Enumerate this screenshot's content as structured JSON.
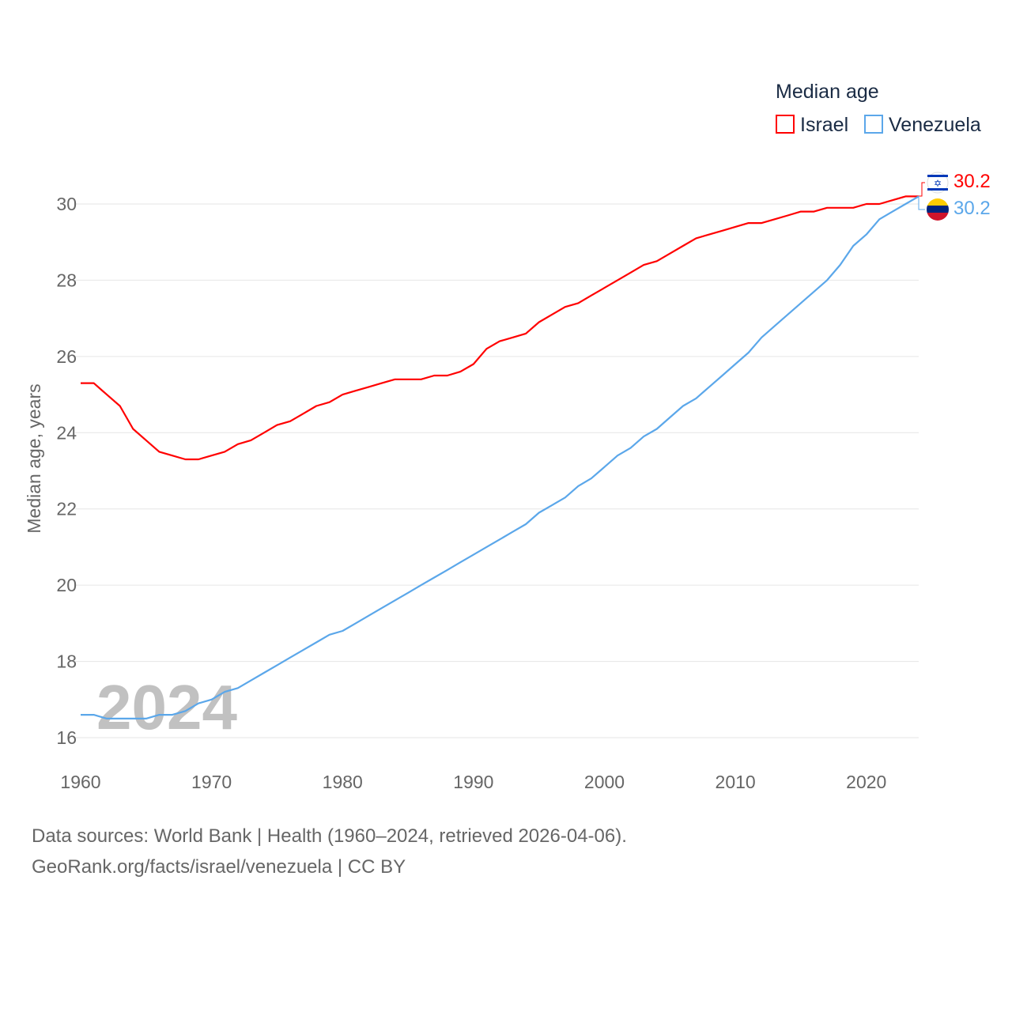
{
  "chart_data": {
    "type": "line",
    "title": "Median age",
    "xlabel": "",
    "ylabel": "Median age, years",
    "xlim": [
      1960,
      2024
    ],
    "ylim": [
      15.5,
      30.5
    ],
    "grid": true,
    "legend_placement": "top-right",
    "x_ticks": [
      1960,
      1970,
      1980,
      1990,
      2000,
      2010,
      2020
    ],
    "y_ticks": [
      16,
      18,
      20,
      22,
      24,
      26,
      28,
      30
    ],
    "watermark_year": "2024",
    "x": [
      1960,
      1961,
      1962,
      1963,
      1964,
      1965,
      1966,
      1967,
      1968,
      1969,
      1970,
      1971,
      1972,
      1973,
      1974,
      1975,
      1976,
      1977,
      1978,
      1979,
      1980,
      1981,
      1982,
      1983,
      1984,
      1985,
      1986,
      1987,
      1988,
      1989,
      1990,
      1991,
      1992,
      1993,
      1994,
      1995,
      1996,
      1997,
      1998,
      1999,
      2000,
      2001,
      2002,
      2003,
      2004,
      2005,
      2006,
      2007,
      2008,
      2009,
      2010,
      2011,
      2012,
      2013,
      2014,
      2015,
      2016,
      2017,
      2018,
      2019,
      2020,
      2021,
      2022,
      2023,
      2024
    ],
    "series": [
      {
        "name": "Israel",
        "color": "#ff0000",
        "end_label": "30.2",
        "values": [
          25.3,
          25.3,
          25.0,
          24.7,
          24.1,
          23.8,
          23.5,
          23.4,
          23.3,
          23.3,
          23.4,
          23.5,
          23.7,
          23.8,
          24.0,
          24.2,
          24.3,
          24.5,
          24.7,
          24.8,
          25.0,
          25.1,
          25.2,
          25.3,
          25.4,
          25.4,
          25.4,
          25.5,
          25.5,
          25.6,
          25.8,
          26.2,
          26.4,
          26.5,
          26.6,
          26.9,
          27.1,
          27.3,
          27.4,
          27.6,
          27.8,
          28.0,
          28.2,
          28.4,
          28.5,
          28.7,
          28.9,
          29.1,
          29.2,
          29.3,
          29.4,
          29.5,
          29.5,
          29.6,
          29.7,
          29.8,
          29.8,
          29.9,
          29.9,
          29.9,
          30.0,
          30.0,
          30.1,
          30.2,
          30.2
        ]
      },
      {
        "name": "Venezuela",
        "color": "#5ba7ea",
        "end_label": "30.2",
        "values": [
          16.6,
          16.6,
          16.5,
          16.5,
          16.5,
          16.5,
          16.6,
          16.6,
          16.7,
          16.9,
          17.0,
          17.2,
          17.3,
          17.5,
          17.7,
          17.9,
          18.1,
          18.3,
          18.5,
          18.7,
          18.8,
          19.0,
          19.2,
          19.4,
          19.6,
          19.8,
          20.0,
          20.2,
          20.4,
          20.6,
          20.8,
          21.0,
          21.2,
          21.4,
          21.6,
          21.9,
          22.1,
          22.3,
          22.6,
          22.8,
          23.1,
          23.4,
          23.6,
          23.9,
          24.1,
          24.4,
          24.7,
          24.9,
          25.2,
          25.5,
          25.8,
          26.1,
          26.5,
          26.8,
          27.1,
          27.4,
          27.7,
          28.0,
          28.4,
          28.9,
          29.2,
          29.6,
          29.8,
          30.0,
          30.2
        ]
      }
    ]
  },
  "footer": {
    "line1": "Data sources: World Bank | Health (1960–2024, retrieved 2026-04-06).",
    "line2": "GeoRank.org/facts/israel/venezuela | CC BY"
  }
}
